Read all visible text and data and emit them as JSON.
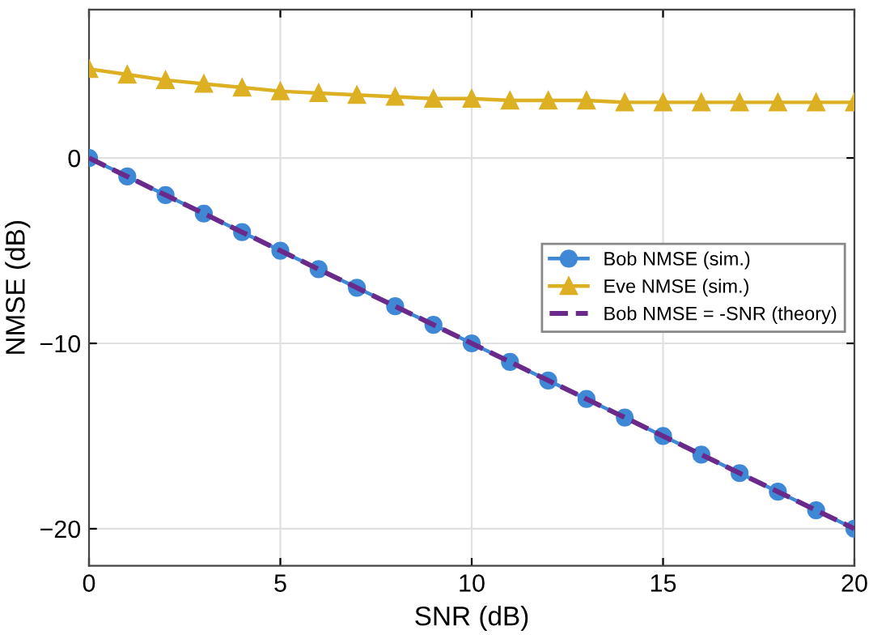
{
  "chart_data": {
    "type": "line",
    "xlabel": "SNR (dB)",
    "ylabel": "NMSE (dB)",
    "x": [
      0,
      1,
      2,
      3,
      4,
      5,
      6,
      7,
      8,
      9,
      10,
      11,
      12,
      13,
      14,
      15,
      16,
      17,
      18,
      19,
      20
    ],
    "series": [
      {
        "name": "Bob NMSE (sim.)",
        "color": "#3f88d6",
        "marker": "circle",
        "line_style": "solid",
        "values": [
          0,
          -1,
          -2,
          -3,
          -4,
          -5,
          -6,
          -7,
          -8,
          -9,
          -10,
          -11,
          -12,
          -13,
          -14,
          -15,
          -16,
          -17,
          -18,
          -19,
          -20
        ]
      },
      {
        "name": "Eve NMSE (sim.)",
        "color": "#ddb023",
        "marker": "triangle",
        "line_style": "solid",
        "values": [
          4.8,
          4.5,
          4.2,
          4.0,
          3.8,
          3.6,
          3.5,
          3.4,
          3.3,
          3.2,
          3.2,
          3.1,
          3.1,
          3.1,
          3.0,
          3.0,
          3.0,
          3.0,
          3.0,
          3.0,
          3.0
        ]
      },
      {
        "name": "Bob NMSE = -SNR (theory)",
        "color": "#6a2a8c",
        "marker": "none",
        "line_style": "dashed",
        "values": [
          0,
          -1,
          -2,
          -3,
          -4,
          -5,
          -6,
          -7,
          -8,
          -9,
          -10,
          -11,
          -12,
          -13,
          -14,
          -15,
          -16,
          -17,
          -18,
          -19,
          -20
        ]
      }
    ],
    "xlim": [
      0,
      20
    ],
    "ylim": [
      -22,
      8
    ],
    "xticks": [
      0,
      5,
      10,
      15,
      20
    ],
    "yticks": [
      -20,
      -10,
      0
    ],
    "grid": true,
    "legend": "right"
  }
}
